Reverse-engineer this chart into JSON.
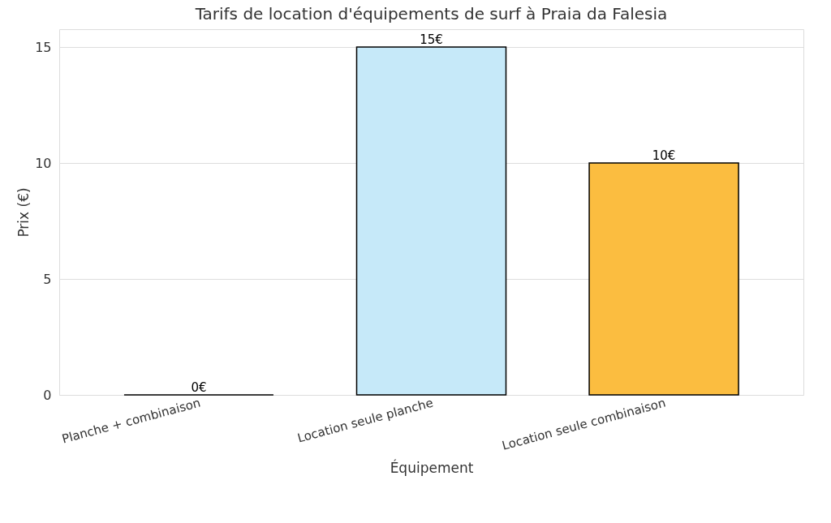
{
  "chart_data": {
    "type": "bar",
    "title": "Tarifs de location d'équipements de surf à Praia da Falesia",
    "xlabel": "Équipement",
    "ylabel": "Prix (€)",
    "categories": [
      "Planche + combinaison",
      "Location seule planche",
      "Location seule combinaison"
    ],
    "values": [
      0,
      15,
      10
    ],
    "colors": [
      "#000000",
      "#c6e9f9",
      "#fbbd40"
    ],
    "value_labels": [
      "0€",
      "15€",
      "10€"
    ],
    "ylim": [
      0,
      15.77
    ],
    "yticks": [
      0,
      5,
      10,
      15
    ],
    "grid": "y"
  }
}
